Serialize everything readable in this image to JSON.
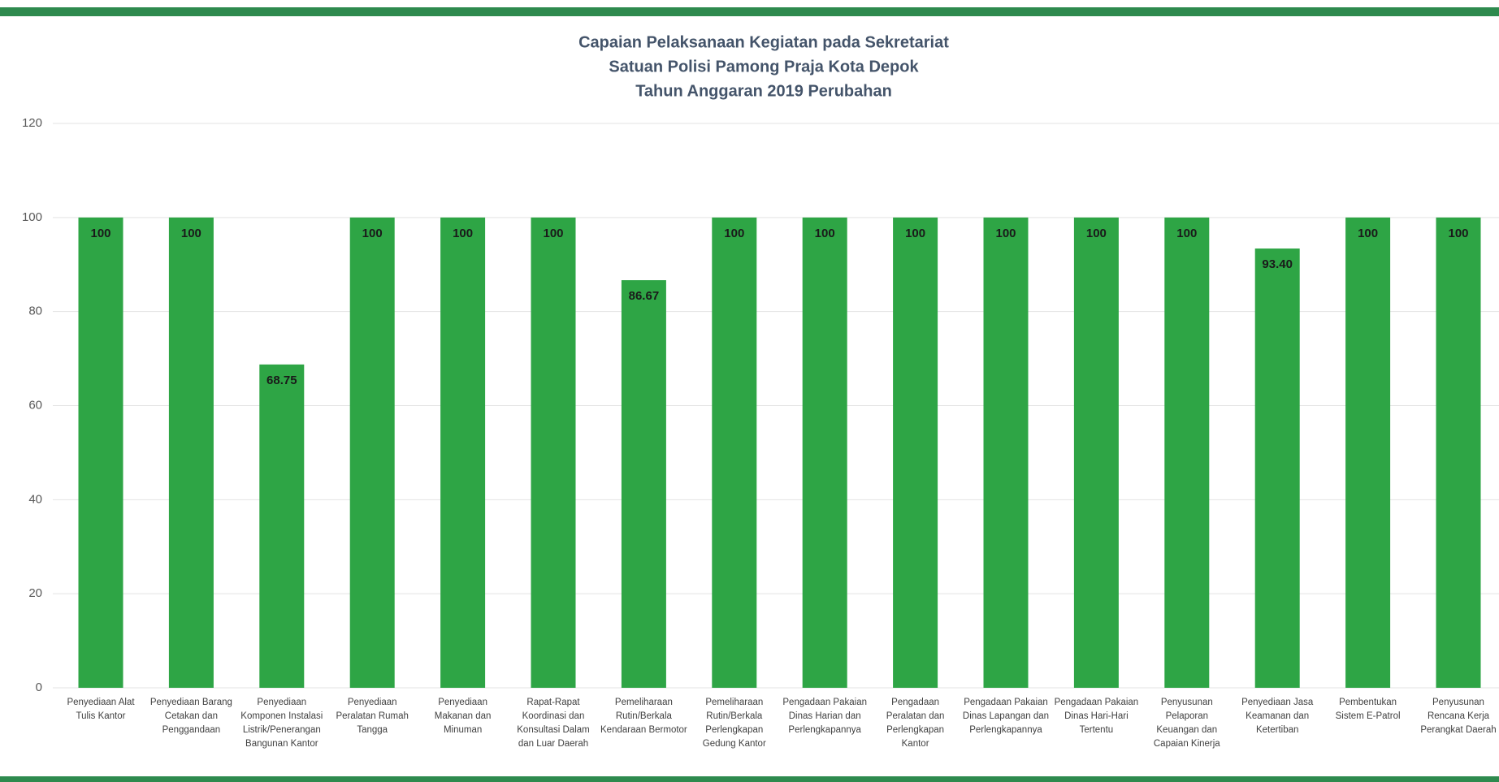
{
  "chart_data": {
    "type": "bar",
    "title": [
      "Capaian Pelaksanaan Kegiatan pada Sekretariat",
      "Satuan Polisi Pamong Praja Kota Depok",
      "Tahun Anggaran 2019 Perubahan"
    ],
    "categories": [
      "Penyediaan Alat Tulis Kantor",
      "Penyediaan Barang Cetakan dan Penggandaan",
      "Penyediaan Komponen Instalasi Listrik/Penerangan Bangunan Kantor",
      "Penyediaan Peralatan Rumah Tangga",
      "Penyediaan Makanan dan Minuman",
      "Rapat-Rapat Koordinasi dan Konsultasi Dalam dan Luar Daerah",
      "Pemeliharaan Rutin/Berkala Kendaraan Bermotor",
      "Pemeliharaan Rutin/Berkala Perlengkapan Gedung Kantor",
      "Pengadaan Pakaian Dinas Harian dan Perlengkapannya",
      "Pengadaan Peralatan dan Perlengkapan Kantor",
      "Pengadaan Pakaian Dinas Lapangan dan Perlengkapannya",
      "Pengadaan Pakaian Dinas Hari-Hari Tertentu",
      "Penyusunan Pelaporan Keuangan dan Capaian Kinerja",
      "Penyediaan Jasa Keamanan dan Ketertiban",
      "Pembentukan Sistem E-Patrol",
      "Penyusunan Rencana Kerja Perangkat Daerah"
    ],
    "values": [
      100,
      100,
      68.75,
      100,
      100,
      100,
      86.67,
      100,
      100,
      100,
      100,
      100,
      100,
      93.4,
      100,
      100
    ],
    "value_labels": [
      "100",
      "100",
      "68.75",
      "100",
      "100",
      "100",
      "86.67",
      "100",
      "100",
      "100",
      "100",
      "100",
      "100",
      "93.40",
      "100",
      "100"
    ],
    "color": "#2ea545",
    "ylim": [
      0,
      120
    ],
    "yticks": [
      0,
      20,
      40,
      60,
      80,
      100,
      120
    ],
    "grid": true
  }
}
